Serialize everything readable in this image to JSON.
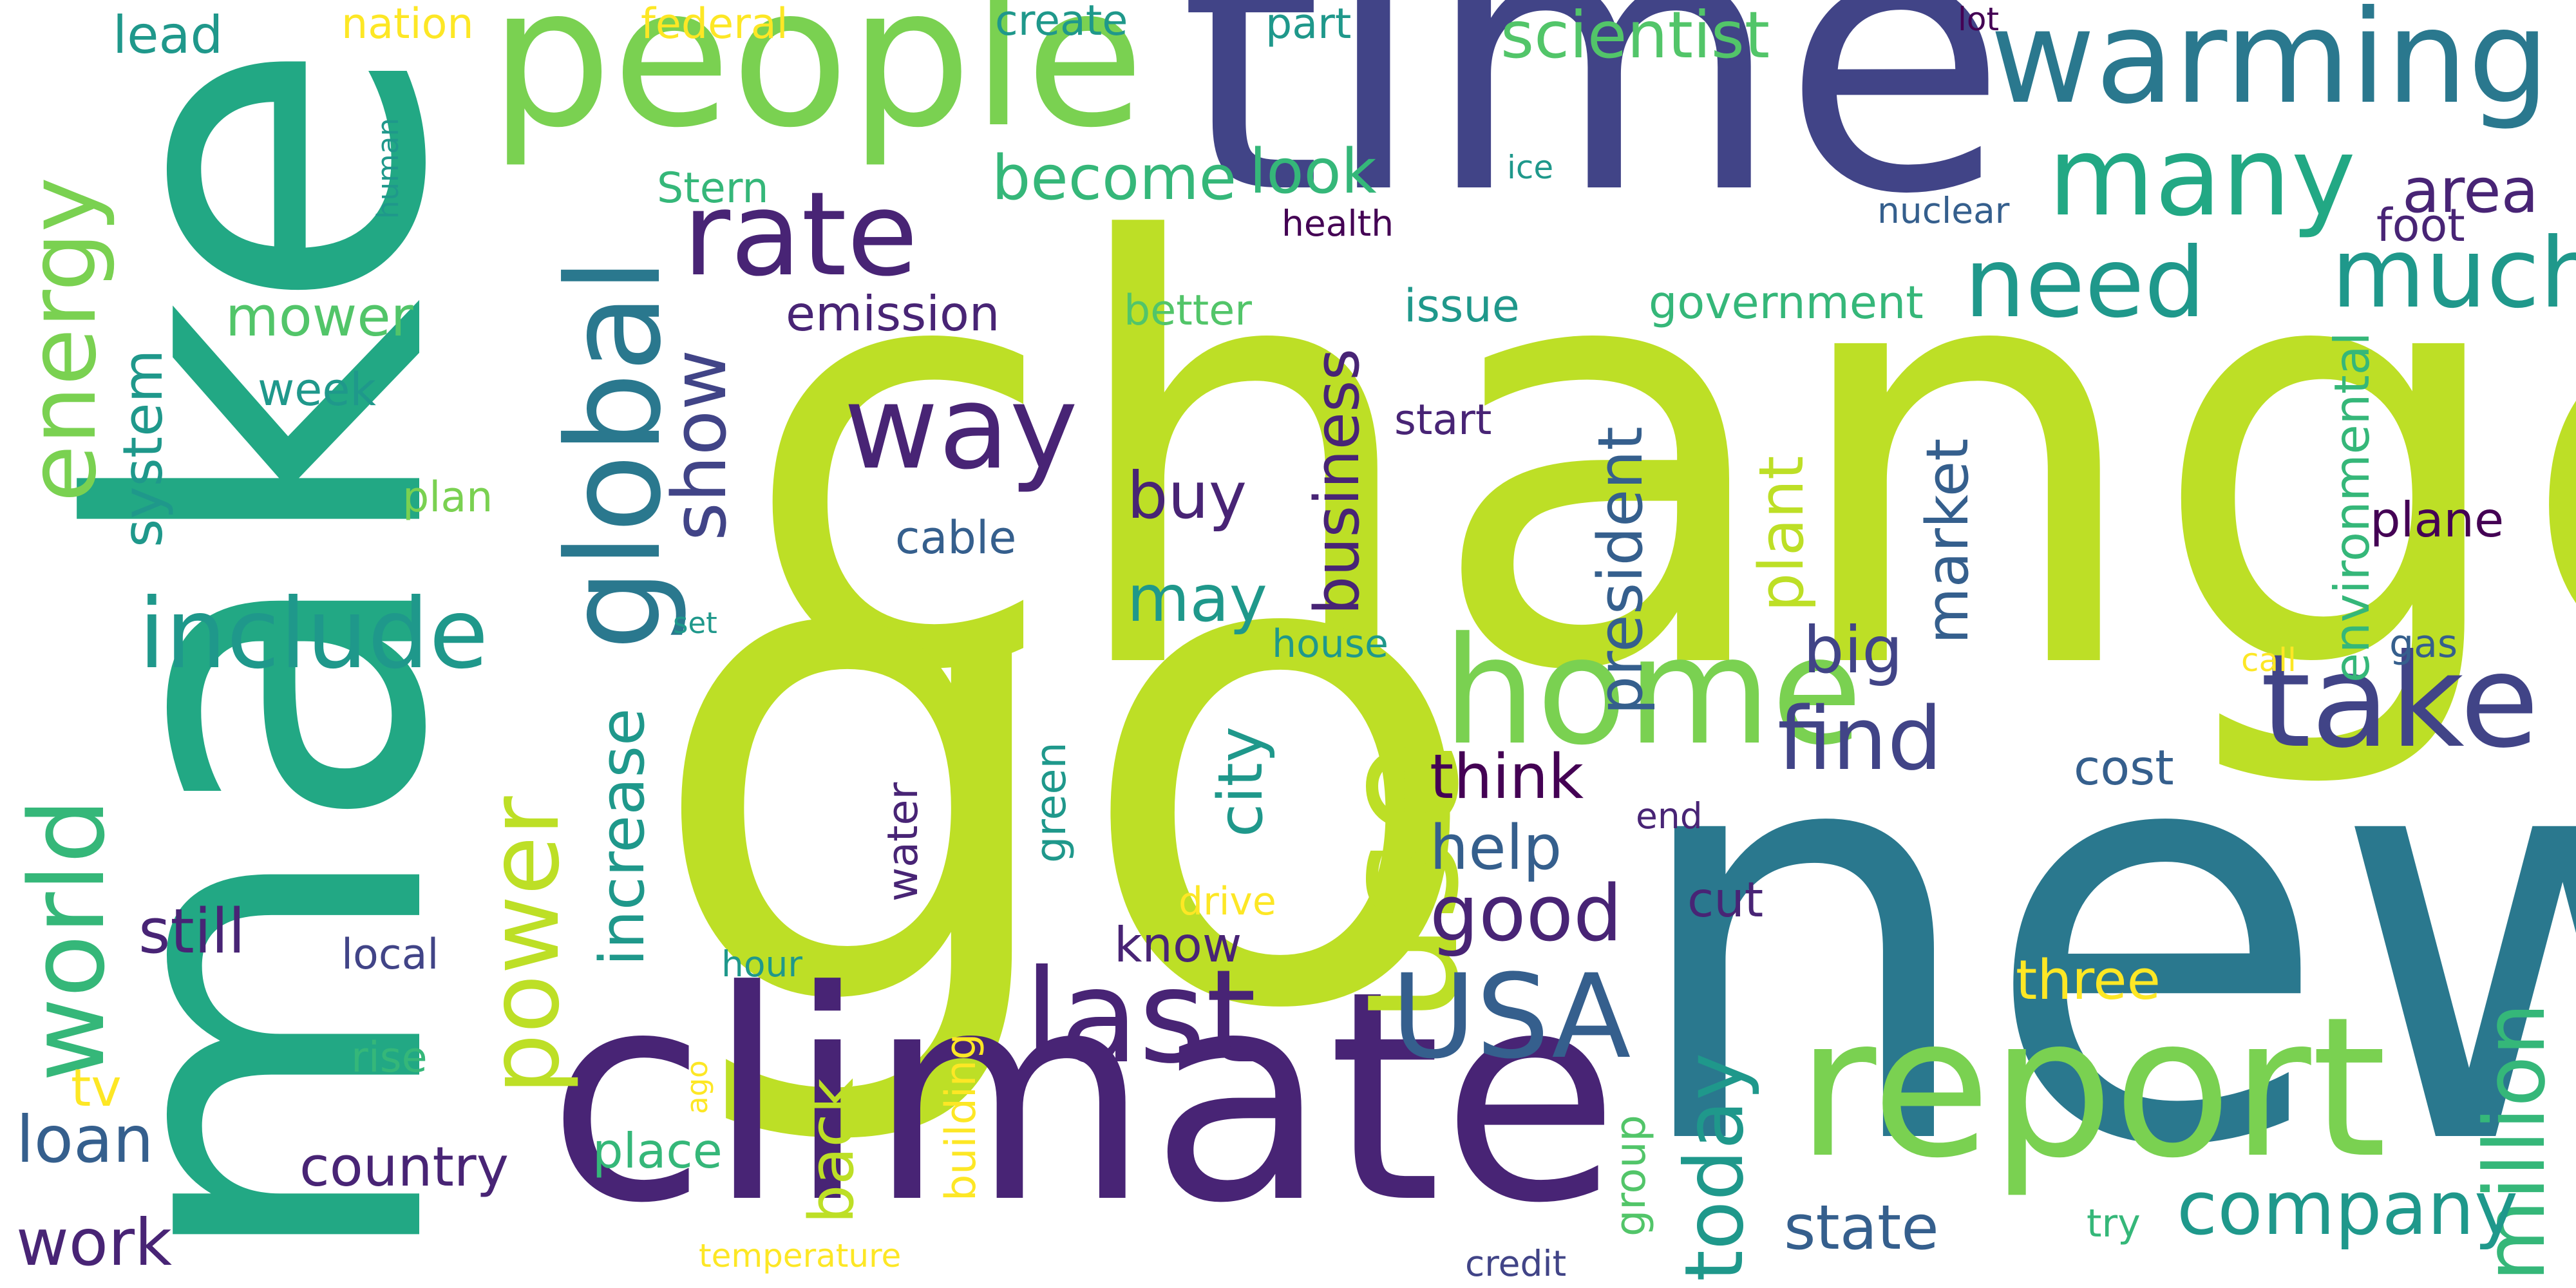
{
  "colors": {
    "c1": "#bddf26",
    "c2": "#2a788e",
    "c3": "#414487",
    "c4": "#482475",
    "c5": "#22a884",
    "c6": "#7ad151",
    "c7": "#440154",
    "c8": "#1f988b",
    "c9": "#35b779",
    "c10": "#fde725",
    "c11": "#52c569",
    "c12": "#355f8d",
    "c13": "#3f4788"
  },
  "words": {
    "change": "change",
    "go": "go",
    "make": "make",
    "new": "new",
    "time": "time",
    "climate": "climate",
    "people": "people",
    "report": "report",
    "warming": "warming",
    "use": "use",
    "home": "home",
    "global": "global",
    "take": "take",
    "last": "last",
    "USA": "USA",
    "energy": "energy",
    "world": "world",
    "rate": "rate",
    "way": "way",
    "many": "many",
    "need": "need",
    "much": "much",
    "include": "include",
    "power": "power",
    "find": "find",
    "million": "million",
    "today": "today",
    "company": "company",
    "show": "show",
    "increase": "increase",
    "president": "president",
    "business": "business",
    "still": "still",
    "state": "state",
    "city": "city",
    "back": "back",
    "plant": "plant",
    "market": "market",
    "good": "good",
    "loan": "loan",
    "work": "work",
    "scientist": "scientist",
    "think": "think",
    "become": "become",
    "look": "look",
    "big": "big",
    "buy": "buy",
    "may": "may",
    "help": "help",
    "area": "area",
    "system": "system",
    "country": "country",
    "mower": "mower",
    "emission": "emission",
    "government": "government",
    "environmental": "environmental",
    "lead": "lead",
    "plane": "plane",
    "cost": "cost",
    "cut": "cut",
    "tv": "tv",
    "three": "three",
    "know": "know",
    "building": "building",
    "group": "group",
    "place": "place",
    "water": "water",
    "green": "green",
    "cable": "cable",
    "week": "week",
    "foot": "foot",
    "issue": "issue",
    "better": "better",
    "part": "part",
    "create": "create",
    "nation": "nation",
    "federal": "federal",
    "Stern": "Stern",
    "plan": "plan",
    "local": "local",
    "rise": "rise",
    "house": "house",
    "start": "start",
    "drive": "drive",
    "end": "end",
    "hour": "hour",
    "try": "try",
    "nuclear": "nuclear",
    "health": "health",
    "gas": "gas",
    "call": "call",
    "ago": "ago",
    "set": "set",
    "human": "human",
    "ice": "ice",
    "lot": "lot",
    "credit": "credit",
    "temperature": "temperature"
  }
}
